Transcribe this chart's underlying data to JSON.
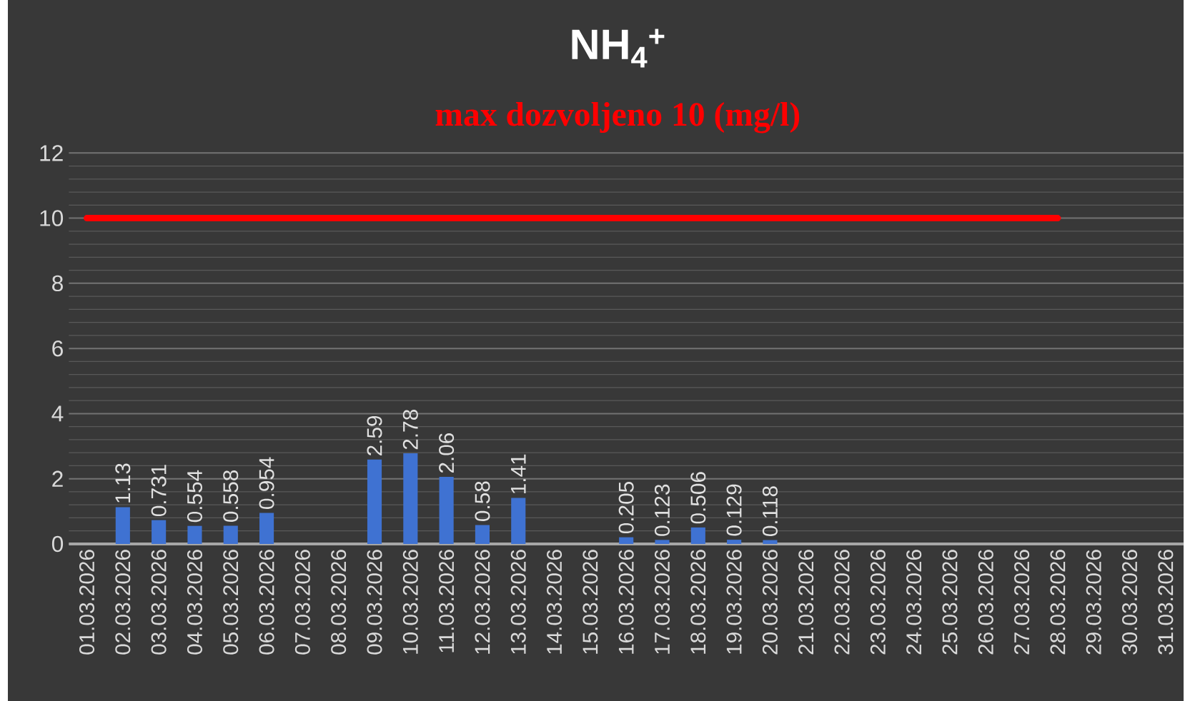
{
  "chart_data": {
    "type": "bar",
    "title": "NH$_{4}$$^{+}$",
    "subtitle": "max dozvoljeno 10 (mg/l)",
    "categories": [
      "01.03.2026",
      "02.03.2026",
      "03.03.2026",
      "04.03.2026",
      "05.03.2026",
      "06.03.2026",
      "07.03.2026",
      "08.03.2026",
      "09.03.2026",
      "10.03.2026",
      "11.03.2026",
      "12.03.2026",
      "13.03.2026",
      "14.03.2026",
      "15.03.2026",
      "16.03.2026",
      "17.03.2026",
      "18.03.2026",
      "19.03.2026",
      "20.03.2026",
      "21.03.2026",
      "22.03.2026",
      "23.03.2026",
      "24.03.2026",
      "25.03.2026",
      "26.03.2026",
      "27.03.2026",
      "28.03.2026",
      "29.03.2026",
      "30.03.2026",
      "31.03.2026"
    ],
    "series": [
      {
        "color": "#3f72d2",
        "values": [
          null,
          1.13,
          0.731,
          0.554,
          0.558,
          0.954,
          null,
          null,
          2.59,
          2.78,
          2.06,
          0.58,
          1.41,
          null,
          null,
          0.205,
          0.123,
          0.506,
          0.129,
          0.118,
          null,
          null,
          null,
          null,
          null,
          null,
          null,
          null,
          null,
          null,
          null
        ],
        "value_labels": [
          null,
          "1.13",
          "0.731",
          "0.554",
          "0.558",
          "0.954",
          null,
          null,
          "2.59",
          "2.78",
          "2.06",
          "0.58",
          "1.41",
          null,
          null,
          "0.205",
          "0.123",
          "0.506",
          "0.129",
          "0.118",
          null,
          null,
          null,
          null,
          null,
          null,
          null,
          null,
          null,
          null,
          null
        ]
      },
      {
        "type": "line",
        "color": "#ff0000",
        "values": [
          10,
          10,
          10,
          10,
          10,
          10,
          10,
          10,
          10,
          10,
          10,
          10,
          10,
          10,
          10,
          10,
          10,
          10,
          10,
          10,
          10,
          10,
          10,
          10,
          10,
          10,
          10,
          10,
          null,
          null,
          null
        ]
      }
    ],
    "ylim": [
      0,
      12
    ],
    "yticks": [
      0,
      2,
      4,
      6,
      8,
      10,
      12
    ],
    "grid": "y"
  }
}
